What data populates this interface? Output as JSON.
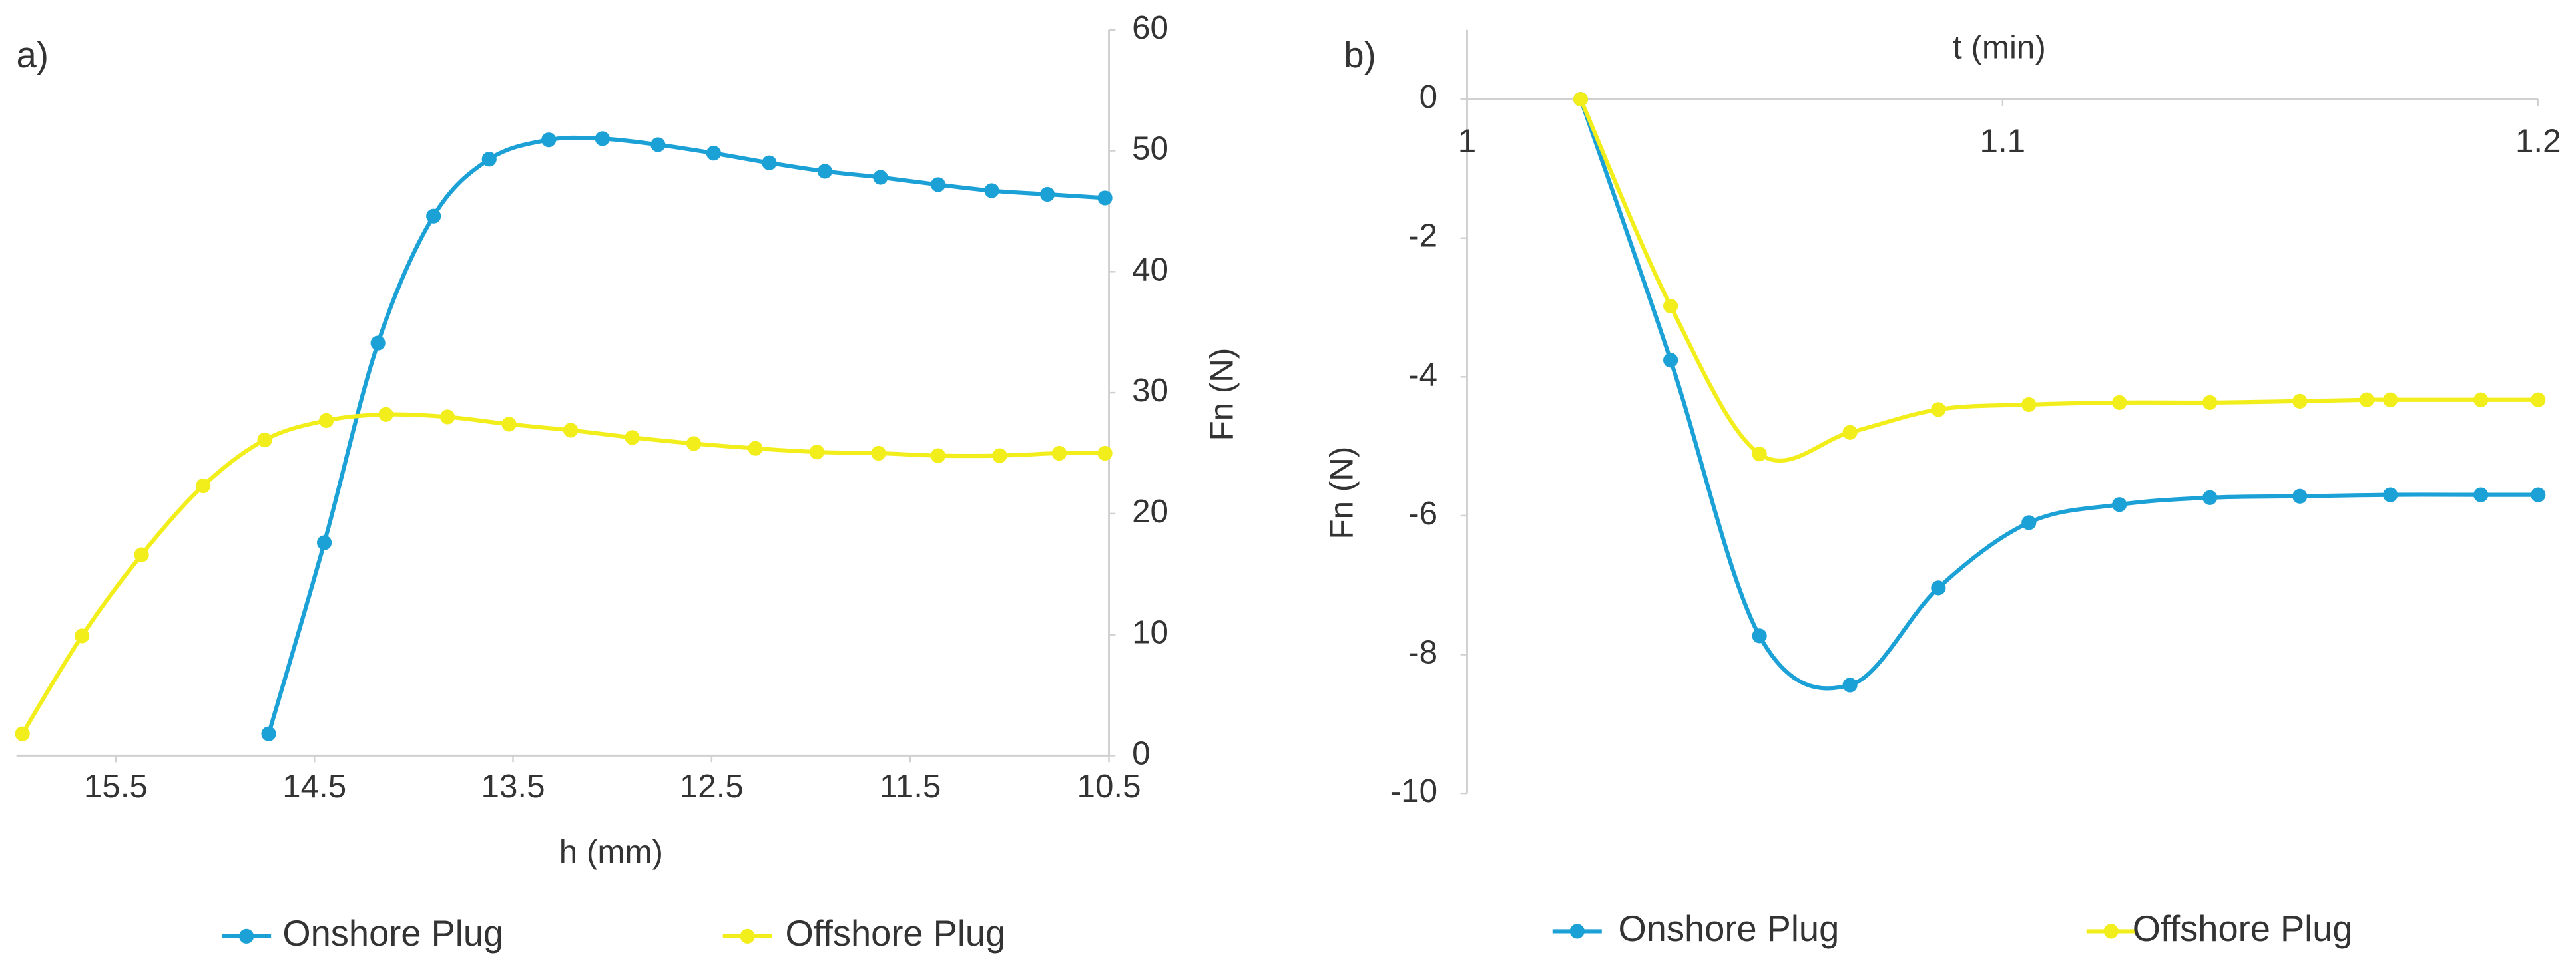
{
  "chart_data": [
    {
      "type": "line",
      "panel_label": "a)",
      "xlabel": "h (mm)",
      "ylabel": "Fn (N)",
      "yaxis_side": "right",
      "xlim": [
        16,
        10.5
      ],
      "xticks": [
        15.5,
        14.5,
        13.5,
        12.5,
        11.5,
        10.5
      ],
      "ylim": [
        0,
        60
      ],
      "yticks": [
        0,
        10,
        20,
        30,
        40,
        50,
        60
      ],
      "series": [
        {
          "name": "Onshore Plug",
          "color": "#1ba1d6",
          "x": [
            14.73,
            14.45,
            14.18,
            13.9,
            13.62,
            13.32,
            13.05,
            12.77,
            12.49,
            12.21,
            11.93,
            11.65,
            11.36,
            11.09,
            10.81,
            10.52
          ],
          "values": [
            1.8,
            17.6,
            34.1,
            44.6,
            49.3,
            50.9,
            51.0,
            50.5,
            49.8,
            49.0,
            48.3,
            47.8,
            47.2,
            46.7,
            46.4,
            46.1
          ]
        },
        {
          "name": "Offshore Plug",
          "color": "#f2ee1c",
          "x": [
            15.97,
            15.67,
            15.37,
            15.06,
            14.75,
            14.44,
            14.14,
            13.83,
            13.52,
            13.21,
            12.9,
            12.59,
            12.28,
            11.97,
            11.66,
            11.36,
            11.05,
            10.75,
            10.52
          ],
          "values": [
            1.8,
            9.9,
            16.6,
            22.3,
            26.1,
            27.7,
            28.2,
            28.0,
            27.4,
            26.9,
            26.3,
            25.8,
            25.4,
            25.1,
            25.0,
            24.8,
            24.8,
            25.0,
            25.0
          ]
        }
      ]
    },
    {
      "type": "line",
      "panel_label": "b)",
      "xlabel": "t (min)",
      "ylabel": "Fn (N)",
      "yaxis_side": "left",
      "xlim": [
        1,
        1.2
      ],
      "xticks": [
        1,
        1.1,
        1.2
      ],
      "ylim": [
        -10,
        1
      ],
      "yticks": [
        -10,
        -8,
        -6,
        -4,
        -2,
        0
      ],
      "series": [
        {
          "name": "Onshore Plug",
          "color": "#1ba1d6",
          "x": [
            1.0212,
            1.038,
            1.0546,
            1.0715,
            1.088,
            1.1049,
            1.1218,
            1.1387,
            1.1555,
            1.1724,
            1.1893,
            1.2
          ],
          "values": [
            0,
            -3.76,
            -7.73,
            -8.44,
            -7.04,
            -6.1,
            -5.84,
            -5.74,
            -5.72,
            -5.7,
            -5.7,
            -5.7
          ]
        },
        {
          "name": "Offshore Plug",
          "color": "#f2ee1c",
          "x": [
            1.0212,
            1.038,
            1.0546,
            1.0715,
            1.088,
            1.1049,
            1.1218,
            1.1387,
            1.1555,
            1.168,
            1.1724,
            1.1893,
            1.2
          ],
          "values": [
            0,
            -2.98,
            -5.11,
            -4.8,
            -4.47,
            -4.4,
            -4.37,
            -4.37,
            -4.35,
            -4.33,
            -4.33,
            -4.33,
            -4.33
          ]
        }
      ]
    }
  ]
}
